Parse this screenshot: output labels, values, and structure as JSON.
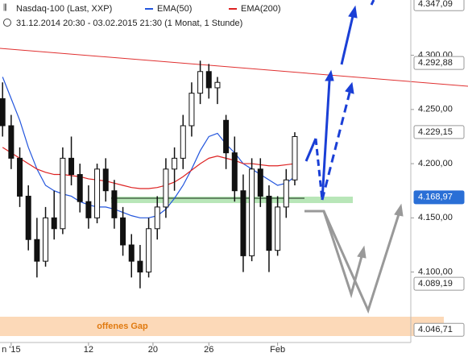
{
  "chart_data": {
    "type": "candlestick",
    "title": "Nasdaq-100 (Last, XXP)",
    "subtitle": "31.12.2014 20:30 - 03.02.2015 21:30 (1 Monat, 1 Stunde)",
    "x": [
      0,
      1,
      2,
      3,
      4,
      5,
      6,
      7,
      8,
      9,
      10,
      11,
      12,
      13,
      14,
      15,
      16,
      17,
      18,
      19,
      20,
      21,
      22,
      23,
      24,
      25,
      26,
      27,
      28,
      29,
      30,
      31,
      32,
      33,
      34
    ],
    "open": [
      4260,
      4235,
      4205,
      4170,
      4130,
      4110,
      4150,
      4140,
      4205,
      4190,
      4165,
      4150,
      4195,
      4175,
      4150,
      4125,
      4110,
      4100,
      4140,
      4160,
      4195,
      4205,
      4235,
      4265,
      4285,
      4270,
      4240,
      4210,
      4175,
      4115,
      4195,
      4170,
      4120,
      4160,
      4185
    ],
    "high": [
      4275,
      4245,
      4215,
      4180,
      4150,
      4160,
      4175,
      4215,
      4225,
      4200,
      4180,
      4200,
      4205,
      4185,
      4160,
      4135,
      4125,
      4150,
      4170,
      4205,
      4215,
      4245,
      4275,
      4295,
      4292,
      4280,
      4245,
      4225,
      4190,
      4205,
      4205,
      4180,
      4170,
      4195,
      4229
    ],
    "low": [
      4225,
      4195,
      4160,
      4120,
      4095,
      4105,
      4130,
      4135,
      4180,
      4155,
      4140,
      4145,
      4165,
      4140,
      4115,
      4095,
      4085,
      4095,
      4130,
      4150,
      4175,
      4195,
      4225,
      4255,
      4260,
      4255,
      4195,
      4165,
      4100,
      4110,
      4160,
      4100,
      4115,
      4150,
      4180
    ],
    "close": [
      4235,
      4205,
      4170,
      4130,
      4110,
      4150,
      4140,
      4205,
      4190,
      4165,
      4150,
      4195,
      4175,
      4150,
      4125,
      4110,
      4100,
      4140,
      4160,
      4195,
      4205,
      4235,
      4265,
      4285,
      4270,
      4275,
      4210,
      4175,
      4115,
      4195,
      4170,
      4120,
      4160,
      4185,
      4225
    ],
    "series": [
      {
        "name": "EMA(50)",
        "color": "#2255dd",
        "values": [
          4280,
          4260,
          4240,
          4215,
          4195,
          4180,
          4175,
          4172,
          4170,
          4165,
          4162,
          4160,
          4160,
          4158,
          4155,
          4152,
          4150,
          4150,
          4152,
          4158,
          4168,
          4180,
          4195,
          4212,
          4225,
          4228,
          4218,
          4210,
          4200,
          4195,
          4190,
          4185,
          4180,
          4182,
          4188
        ]
      },
      {
        "name": "EMA(200)",
        "color": "#dd2222",
        "values": [
          4215,
          4210,
          4205,
          4200,
          4195,
          4192,
          4190,
          4190,
          4189,
          4188,
          4186,
          4185,
          4184,
          4182,
          4180,
          4178,
          4177,
          4177,
          4178,
          4180,
          4183,
          4188,
          4194,
          4200,
          4205,
          4207,
          4205,
          4203,
          4200,
          4200,
          4199,
          4198,
          4198,
          4199,
          4200
        ]
      }
    ],
    "xlim": [
      -0.3,
      47.5
    ],
    "ylim": [
      4035,
      4351
    ],
    "xticks": [
      {
        "value": 1,
        "label": "n '15"
      },
      {
        "value": 10,
        "label": "12"
      },
      {
        "value": 17.5,
        "label": "20"
      },
      {
        "value": 24,
        "label": "26"
      },
      {
        "value": 32,
        "label": "Feb"
      }
    ],
    "yticks": [
      {
        "value": 4100,
        "label": "4.100,00"
      },
      {
        "value": 4150,
        "label": "4.150,00"
      },
      {
        "value": 4200,
        "label": "4.200,00"
      },
      {
        "value": 4250,
        "label": "4.250,00"
      },
      {
        "value": 4300,
        "label": "4.300,00"
      }
    ],
    "levels": [
      {
        "value": 4347.09,
        "label": "4.347,09"
      },
      {
        "value": 4292.88,
        "label": "4.292,88"
      },
      {
        "value": 4229.15,
        "label": "4.229,15"
      },
      {
        "value": 4168.97,
        "label": "4.168,97",
        "highlight": true
      },
      {
        "value": 4089.19,
        "label": "4.089,19"
      },
      {
        "value": 4046.71,
        "label": "4.046,71"
      }
    ],
    "annotation": "offenes Gap",
    "grid": false
  }
}
